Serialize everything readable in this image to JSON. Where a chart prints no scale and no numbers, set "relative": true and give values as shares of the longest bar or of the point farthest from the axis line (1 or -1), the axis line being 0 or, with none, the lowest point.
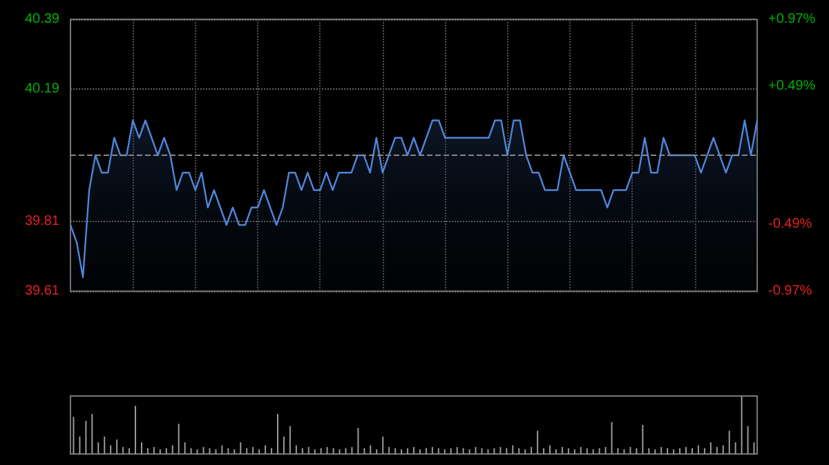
{
  "chart_data": [
    {
      "type": "area",
      "categories": [
        null,
        null,
        null,
        null,
        null,
        null,
        null,
        null,
        null,
        null,
        null,
        null,
        null,
        null,
        null,
        null,
        null,
        null,
        null,
        null,
        null,
        null,
        null,
        null,
        null,
        null,
        null,
        null,
        null,
        null,
        null,
        null,
        null,
        null,
        null,
        null,
        null,
        null,
        null,
        null,
        null,
        null,
        null,
        null,
        null,
        null,
        null,
        null,
        null,
        null,
        null,
        null,
        null,
        null,
        null,
        null,
        null,
        null,
        null,
        null,
        null,
        null,
        null,
        null,
        null,
        null,
        null,
        null,
        null,
        null,
        null,
        null,
        null,
        null,
        null,
        null,
        null,
        null,
        null,
        null,
        null,
        null,
        null,
        null,
        null,
        null,
        null,
        null,
        null,
        null,
        null,
        null,
        null,
        null,
        null,
        null,
        null,
        null,
        null,
        null,
        null,
        null,
        null,
        null,
        null,
        null,
        null,
        null,
        null,
        null,
        null
      ],
      "series": [
        {
          "color": "#4f86d9",
          "values": [
            39.8,
            39.75,
            39.65,
            39.9,
            40.0,
            39.95,
            39.95,
            40.05,
            40.0,
            40.0,
            40.1,
            40.05,
            40.1,
            40.05,
            40.0,
            40.05,
            40.0,
            39.9,
            39.95,
            39.95,
            39.9,
            39.95,
            39.85,
            39.9,
            39.85,
            39.8,
            39.85,
            39.8,
            39.8,
            39.85,
            39.85,
            39.9,
            39.85,
            39.8,
            39.85,
            39.95,
            39.95,
            39.9,
            39.95,
            39.9,
            39.9,
            39.95,
            39.9,
            39.95,
            39.95,
            39.95,
            40.0,
            40.0,
            39.95,
            40.05,
            39.95,
            40.0,
            40.05,
            40.05,
            40.0,
            40.05,
            40.0,
            40.05,
            40.1,
            40.1,
            40.05,
            40.05,
            40.05,
            40.05,
            40.05,
            40.05,
            40.05,
            40.05,
            40.1,
            40.1,
            40.0,
            40.1,
            40.1,
            40.0,
            39.95,
            39.95,
            39.9,
            39.9,
            39.9,
            40.0,
            39.95,
            39.9,
            39.9,
            39.9,
            39.9,
            39.9,
            39.85,
            39.9,
            39.9,
            39.9,
            39.95,
            39.95,
            40.05,
            39.95,
            39.95,
            40.05,
            40.0,
            40.0,
            40.0,
            40.0,
            40.0,
            39.95,
            40.0,
            40.05,
            40.0,
            39.95,
            40.0,
            40.0,
            40.1,
            40.0,
            40.1
          ]
        }
      ],
      "ylim": [
        39.61,
        40.39
      ],
      "yticks": [
        39.61,
        39.81,
        40.19,
        40.39
      ],
      "y2lim": [
        -0.97,
        0.97
      ],
      "y2ticks": [
        {
          "value": -0.97,
          "label": "-0.97%"
        },
        {
          "value": -0.49,
          "label": "-0.49%"
        },
        {
          "value": 0.49,
          "label": "+0.49%"
        },
        {
          "value": 0.97,
          "label": "+0.97%"
        }
      ],
      "ref_lines": [
        {
          "axis": "y",
          "value": 40.0,
          "color": "#888888",
          "line_style": "dashed"
        }
      ],
      "grid": true,
      "tick_labels": "y"
    },
    {
      "type": "bar",
      "relative": true,
      "categories": [
        null,
        null,
        null,
        null,
        null,
        null,
        null,
        null,
        null,
        null,
        null,
        null,
        null,
        null,
        null,
        null,
        null,
        null,
        null,
        null,
        null,
        null,
        null,
        null,
        null,
        null,
        null,
        null,
        null,
        null,
        null,
        null,
        null,
        null,
        null,
        null,
        null,
        null,
        null,
        null,
        null,
        null,
        null,
        null,
        null,
        null,
        null,
        null,
        null,
        null,
        null,
        null,
        null,
        null,
        null,
        null,
        null,
        null,
        null,
        null,
        null,
        null,
        null,
        null,
        null,
        null,
        null,
        null,
        null,
        null,
        null,
        null,
        null,
        null,
        null,
        null,
        null,
        null,
        null,
        null,
        null,
        null,
        null,
        null,
        null,
        null,
        null,
        null,
        null,
        null,
        null,
        null,
        null,
        null,
        null,
        null,
        null,
        null,
        null,
        null,
        null,
        null,
        null,
        null,
        null,
        null,
        null,
        null,
        null,
        null,
        null
      ],
      "series": [
        {
          "color": "#9a9a9a",
          "values": [
            0.64,
            0.3,
            0.57,
            0.69,
            0.2,
            0.3,
            0.15,
            0.25,
            0.12,
            0.1,
            0.83,
            0.2,
            0.1,
            0.12,
            0.08,
            0.1,
            0.15,
            0.52,
            0.2,
            0.1,
            0.08,
            0.12,
            0.1,
            0.08,
            0.15,
            0.1,
            0.08,
            0.2,
            0.1,
            0.12,
            0.08,
            0.15,
            0.1,
            0.69,
            0.3,
            0.48,
            0.15,
            0.1,
            0.12,
            0.08,
            0.1,
            0.12,
            0.1,
            0.08,
            0.1,
            0.12,
            0.45,
            0.1,
            0.15,
            0.08,
            0.3,
            0.12,
            0.1,
            0.08,
            0.1,
            0.12,
            0.08,
            0.1,
            0.12,
            0.1,
            0.08,
            0.1,
            0.12,
            0.1,
            0.08,
            0.12,
            0.1,
            0.08,
            0.1,
            0.12,
            0.1,
            0.15,
            0.1,
            0.08,
            0.12,
            0.4,
            0.1,
            0.15,
            0.08,
            0.12,
            0.1,
            0.08,
            0.12,
            0.1,
            0.08,
            0.1,
            0.12,
            0.55,
            0.1,
            0.08,
            0.12,
            0.1,
            0.5,
            0.1,
            0.08,
            0.12,
            0.1,
            0.08,
            0.1,
            0.12,
            0.1,
            0.15,
            0.1,
            0.2,
            0.12,
            0.15,
            0.4,
            0.2,
            1,
            0.48,
            0.2
          ]
        }
      ],
      "grid": false
    }
  ]
}
